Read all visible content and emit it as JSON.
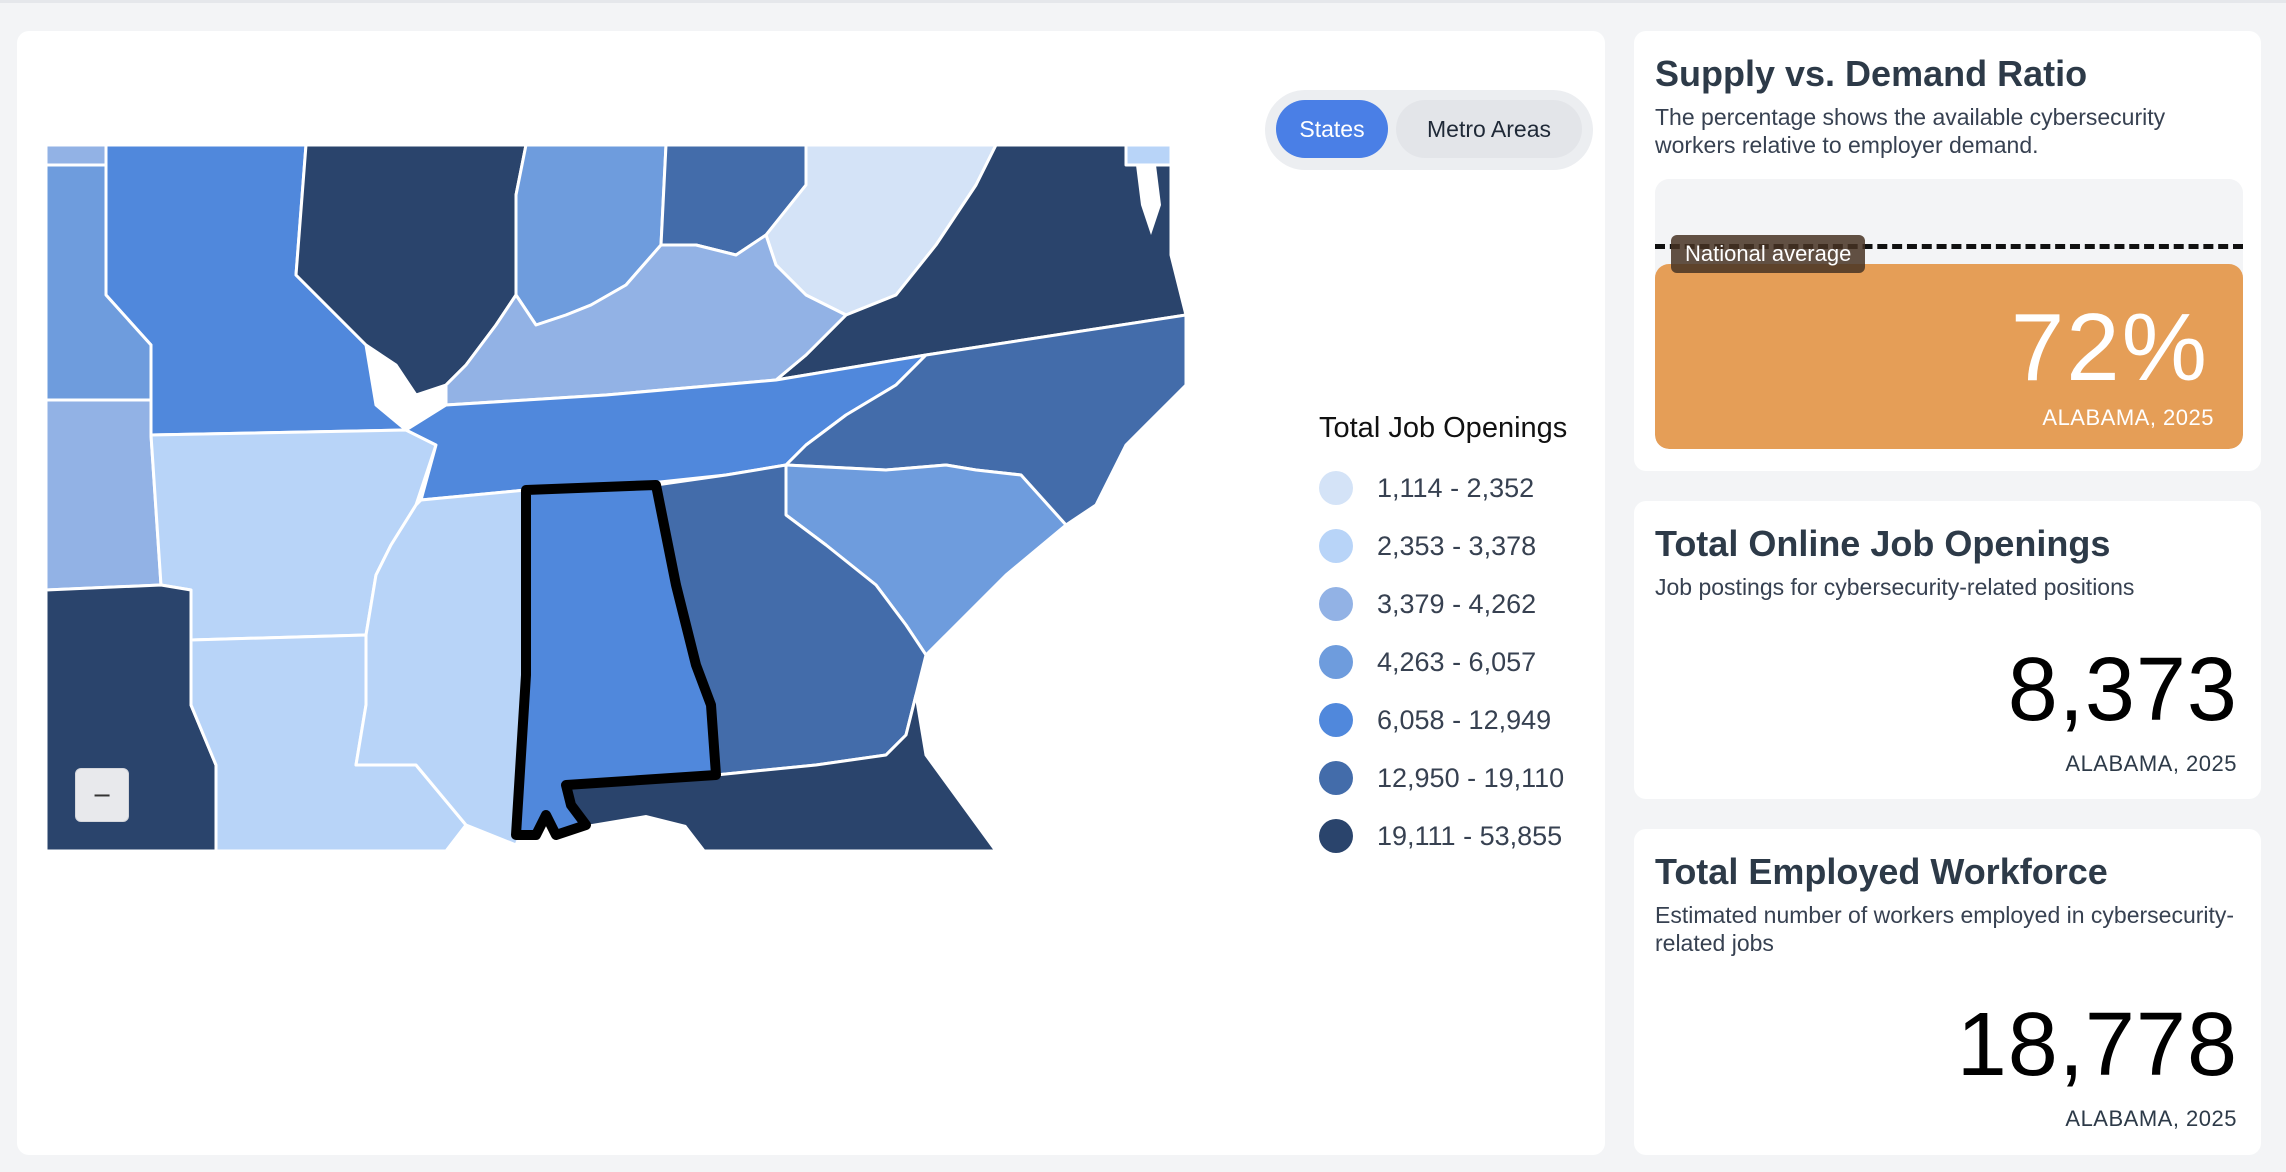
{
  "map_toggle": {
    "options": [
      "States",
      "Metro Areas"
    ],
    "selected": "States"
  },
  "zoom": {
    "out_label": "−"
  },
  "legend": {
    "title": "Total Job Openings",
    "bins": [
      {
        "label": "1,114 - 2,352",
        "color": "#d4e3f7"
      },
      {
        "label": "2,353 - 3,378",
        "color": "#b8d4f8"
      },
      {
        "label": "3,379 - 4,262",
        "color": "#92b2e5"
      },
      {
        "label": "4,263 - 6,057",
        "color": "#6e9cdd"
      },
      {
        "label": "6,058 - 12,949",
        "color": "#5088dc"
      },
      {
        "label": "12,950 - 19,110",
        "color": "#436caa"
      },
      {
        "label": "19,111 - 53,855",
        "color": "#2a446c"
      }
    ]
  },
  "map": {
    "selected_state": "Alabama",
    "highlight_color": "#000000"
  },
  "supply_demand": {
    "title": "Supply vs. Demand Ratio",
    "description": "The percentage shows the available cybersecurity workers relative to employer demand.",
    "value": "72%",
    "ratio": 0.72,
    "national_average_label": "National average",
    "caption": "ALABAMA, 2025",
    "bar_color": "#e59e57"
  },
  "job_openings": {
    "title": "Total Online Job Openings",
    "description": "Job postings for cybersecurity-related positions",
    "value": "8,373",
    "caption": "ALABAMA, 2025"
  },
  "workforce": {
    "title": "Total Employed Workforce",
    "description": "Estimated number of workers employed in cybersecurity-related jobs",
    "value": "18,778",
    "caption": "ALABAMA, 2025"
  }
}
